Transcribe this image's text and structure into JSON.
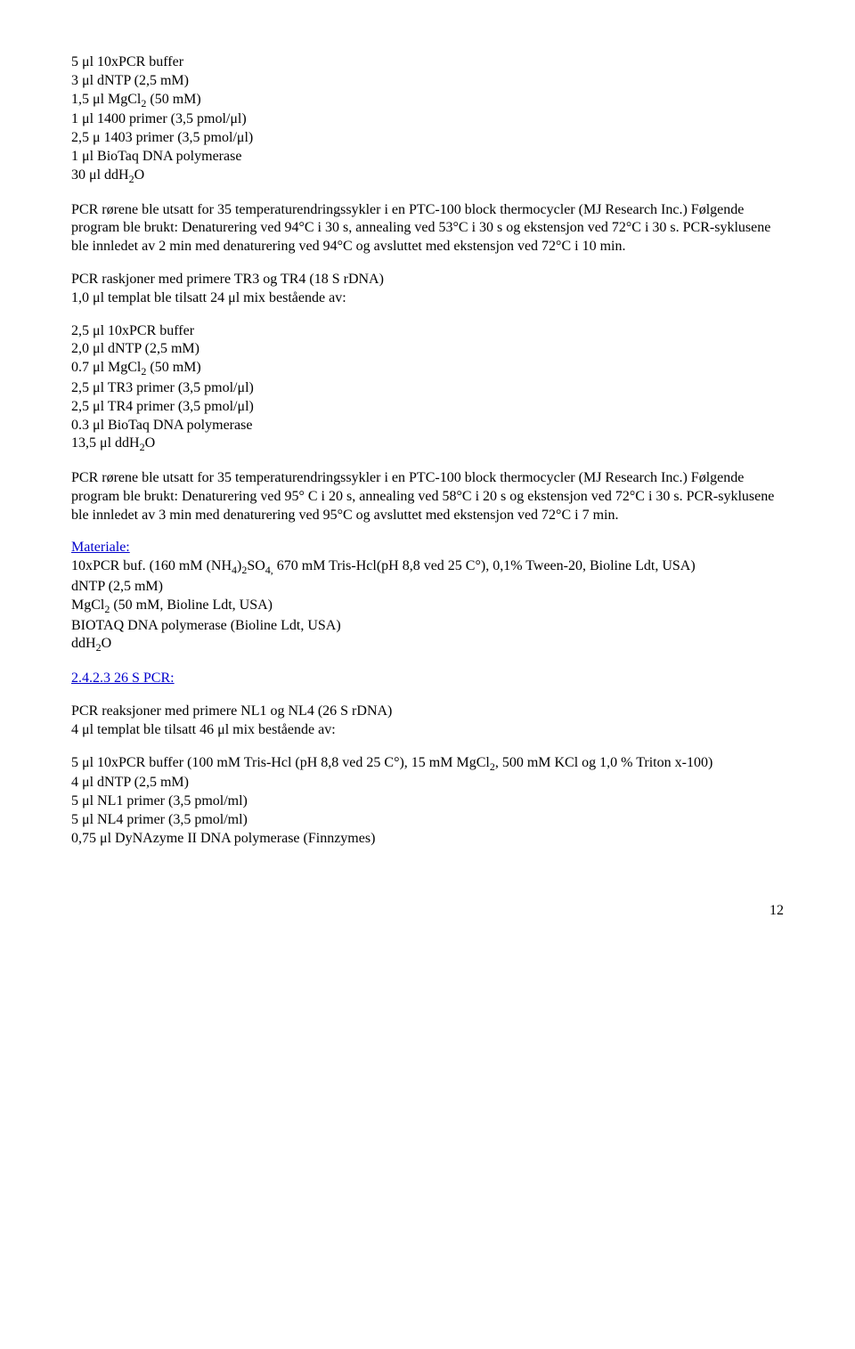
{
  "block1": {
    "l1": "5 μl 10xPCR buffer",
    "l2": "3 μl dNTP (2,5 mM)",
    "l3a": "1,5 μl MgCl",
    "l3b": " (50 mM)",
    "l4": "1 μl 1400 primer (3,5 pmol/μl)",
    "l5": "2,5 μ 1403 primer (3,5 pmol/μl)",
    "l6": "1 μl BioTaq DNA polymerase",
    "l7a": "30 μl ddH",
    "l7b": "O"
  },
  "para1": "PCR rørene ble utsatt for 35 temperaturendringssykler i en PTC-100 block thermocycler (MJ Research Inc.) Følgende program ble brukt: Denaturering ved 94°C i 30 s, annealing ved 53°C i 30 s og ekstensjon ved 72°C i 30  s. PCR-syklusene ble innledet av 2 min med denaturering ved 94°C og avsluttet med ekstensjon ved 72°C i 10 min.",
  "para2": {
    "l1": "PCR raskjoner med primere TR3 og TR4 (18 S rDNA)",
    "l2": "1,0 μl templat ble tilsatt 24 μl mix bestående av:"
  },
  "block2": {
    "l1": "2,5 μl 10xPCR buffer",
    "l2": "2,0 μl dNTP (2,5 mM)",
    "l3a": "0.7 μl MgCl",
    "l3b": " (50 mM)",
    "l4": "2,5 μl TR3 primer (3,5 pmol/μl)",
    "l5": "2,5 μl TR4 primer (3,5 pmol/μl)",
    "l6": "0.3 μl BioTaq DNA polymerase",
    "l7a": "13,5 μl ddH",
    "l7b": "O"
  },
  "para3": "PCR rørene ble utsatt for 35 temperaturendringssykler i en PTC-100 block thermocycler (MJ Research Inc.) Følgende program ble brukt: Denaturering ved 95° C i 20 s, annealing ved 58°C i 20 s og ekstensjon ved 72°C i 30 s. PCR-syklusene ble innledet av 3 min med denaturering ved 95°C og avsluttet med ekstensjon ved 72°C i 7 min.",
  "materiale": {
    "heading": "Materiale:",
    "l1a": "10xPCR buf. (160 mM (NH",
    "l1b": ")",
    "l1c": "SO",
    "l1d": " 670 mM Tris-Hcl(pH 8,8 ved 25 C°), 0,1% Tween-20, Bioline Ldt, USA)",
    "l2": "dNTP (2,5 mM)",
    "l3a": "MgCl",
    "l3b": " (50 mM, Bioline Ldt, USA)",
    "l4": "BIOTAQ DNA polymerase (Bioline Ldt, USA)",
    "l5a": "ddH",
    "l5b": "O"
  },
  "section_heading": "2.4.2.3 26 S PCR:",
  "para4": {
    "l1": "PCR reaksjoner med primere NL1 og NL4 (26 S rDNA)",
    "l2": "4 μl templat ble tilsatt 46 μl mix bestående av:"
  },
  "block3": {
    "l1a": "5 μl 10xPCR buffer (100 mM Tris-Hcl (pH 8,8 ved 25 C°), 15 mM MgCl",
    "l1b": ", 500 mM KCl og 1,0 % Triton x-100)",
    "l2": "4 μl dNTP (2,5 mM)",
    "l3": "5 μl NL1 primer (3,5 pmol/ml)",
    "l4": "5 μl NL4 primer (3,5 pmol/ml)",
    "l5": "0,75 μl DyNAzyme II DNA polymerase (Finnzymes)"
  },
  "pagenum": "12",
  "sub2": "2",
  "sub4": "4",
  "sub4comma": "4,"
}
